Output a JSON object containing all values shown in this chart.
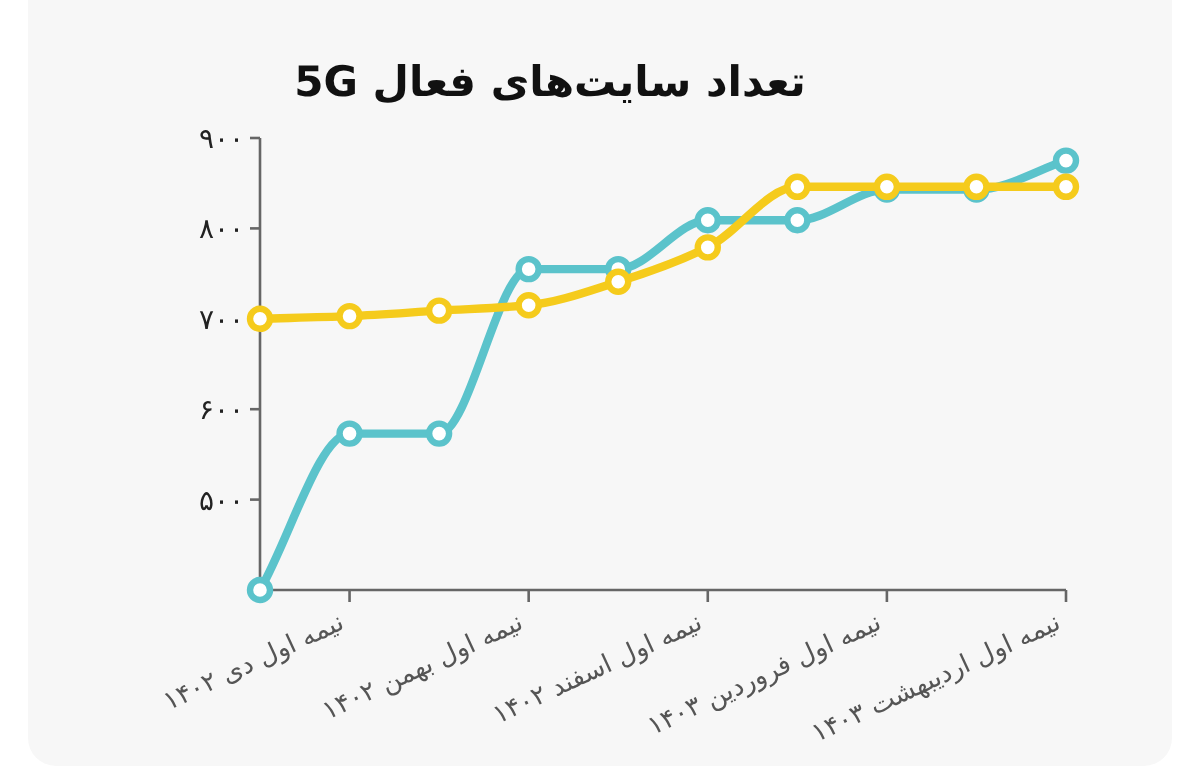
{
  "chart_data": {
    "type": "line",
    "title": "تعداد سایت‌های فعال 5G",
    "categories": [
      null,
      "نیمه اول دی ۱۴۰۲",
      null,
      "نیمه اول بهمن ۱۴۰۲",
      null,
      "نیمه اول اسفند ۱۴۰۲",
      null,
      "نیمه اول فروردین ۱۴۰۳",
      null,
      "نیمه اول اردیبهشت ۱۴۰۳"
    ],
    "series": [
      {
        "color": "#5bc3cb",
        "values": [
          400,
          573,
          573,
          755,
          755,
          809,
          809,
          843,
          843,
          875
        ]
      },
      {
        "color": "#f5cb1c",
        "values": [
          700,
          703,
          709,
          715,
          741,
          779,
          846,
          846,
          846,
          846
        ]
      }
    ],
    "ylim": [
      400,
      900
    ],
    "yticks": [
      {
        "value": 500,
        "label": "۵۰۰"
      },
      {
        "value": 600,
        "label": "۶۰۰"
      },
      {
        "value": 700,
        "label": "۷۰۰"
      },
      {
        "value": 800,
        "label": "۸۰۰"
      },
      {
        "value": 900,
        "label": "۹۰۰"
      }
    ],
    "marker": "circle"
  }
}
